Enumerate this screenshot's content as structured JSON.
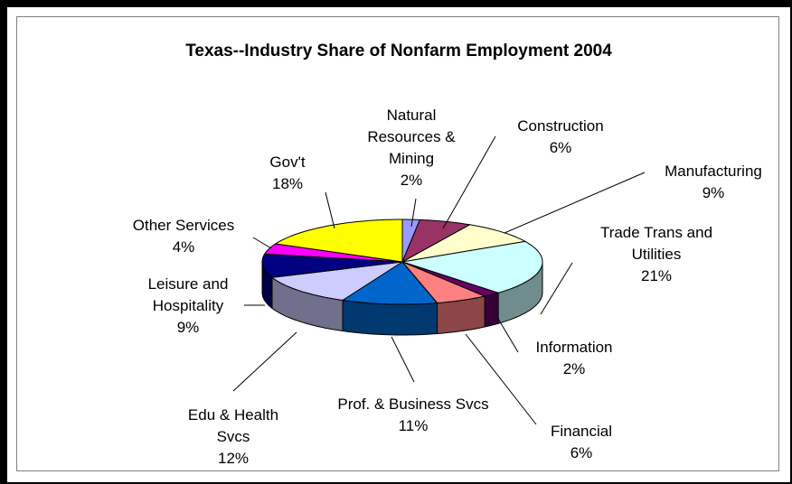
{
  "chart_data": {
    "type": "pie",
    "title": "Texas--Industry Share of Nonfarm Employment 2004",
    "categories": [
      "Natural Resources & Mining",
      "Construction",
      "Manufacturing",
      "Trade Trans and Utilities",
      "Information",
      "Financial",
      "Prof. & Business Svcs",
      "Edu & Health Svcs",
      "Leisure and Hospitality",
      "Other Services",
      "Gov't"
    ],
    "values": [
      2,
      6,
      9,
      21,
      2,
      6,
      11,
      12,
      9,
      4,
      18
    ],
    "value_labels": [
      "2%",
      "6%",
      "9%",
      "21%",
      "2%",
      "6%",
      "11%",
      "12%",
      "9%",
      "4%",
      "18%"
    ],
    "colors": [
      "#9999ff",
      "#993366",
      "#ffffcc",
      "#ccffff",
      "#660066",
      "#ff8080",
      "#0066cc",
      "#ccccff",
      "#000080",
      "#ff00ff",
      "#ffff00"
    ]
  }
}
